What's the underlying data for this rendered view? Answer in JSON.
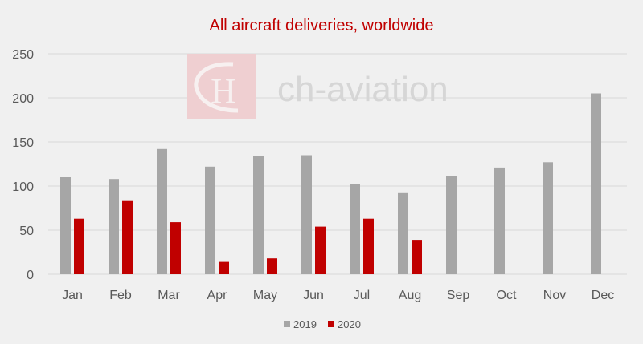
{
  "chart_data": {
    "type": "bar",
    "title": "All aircraft deliveries, worldwide",
    "categories": [
      "Jan",
      "Feb",
      "Mar",
      "Apr",
      "May",
      "Jun",
      "Jul",
      "Aug",
      "Sep",
      "Oct",
      "Nov",
      "Dec"
    ],
    "series": [
      {
        "name": "2019",
        "color": "#a6a6a6",
        "values": [
          110,
          108,
          142,
          122,
          134,
          135,
          102,
          92,
          111,
          121,
          127,
          205
        ]
      },
      {
        "name": "2020",
        "color": "#c00000",
        "values": [
          63,
          83,
          59,
          14,
          18,
          54,
          63,
          39,
          null,
          null,
          null,
          null
        ]
      }
    ],
    "ylim": [
      0,
      250
    ],
    "yticks": [
      0,
      50,
      100,
      150,
      200,
      250
    ],
    "grid": true,
    "legend": "bottom",
    "xlabel": "",
    "ylabel": ""
  },
  "watermark": {
    "text": "ch-aviation",
    "logo_letters": "CH"
  }
}
